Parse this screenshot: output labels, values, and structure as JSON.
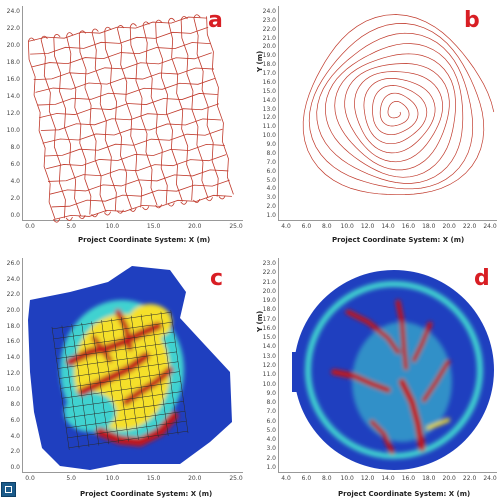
{
  "panels": {
    "a": {
      "label": "a",
      "xlabel": "Project Coordinate System: X (m)",
      "ylabel": "",
      "xticks": [
        "0.0",
        "5.0",
        "10.0",
        "15.0",
        "20.0",
        "25.0"
      ],
      "yticks": [
        "0.0",
        "2.0",
        "4.0",
        "6.0",
        "8.0",
        "10.0",
        "12.0",
        "14.0",
        "16.0",
        "18.0",
        "20.0",
        "22.0",
        "24.0"
      ],
      "style": "track-grid",
      "track_color": "#c0392b"
    },
    "b": {
      "label": "b",
      "xlabel": "Project Coordinate System: X (m)",
      "ylabel": "Y (m)",
      "xticks": [
        "4.0",
        "6.0",
        "8.0",
        "10.0",
        "12.0",
        "14.0",
        "16.0",
        "18.0",
        "20.0",
        "22.0",
        "24.0"
      ],
      "yticks": [
        "1.0",
        "2.0",
        "3.0",
        "4.0",
        "5.0",
        "6.0",
        "7.0",
        "8.0",
        "9.0",
        "10.0",
        "11.0",
        "12.0",
        "13.0",
        "14.0",
        "15.0",
        "16.0",
        "17.0",
        "18.0",
        "19.0",
        "20.0",
        "21.0",
        "22.0",
        "23.0",
        "24.0"
      ],
      "style": "track-spiral",
      "track_color": "#c0392b"
    },
    "c": {
      "label": "c",
      "xlabel": "Project Coordinate System: X (m)",
      "ylabel": "",
      "xticks": [
        "0.0",
        "5.0",
        "10.0",
        "15.0",
        "20.0",
        "25.0"
      ],
      "yticks": [
        "0.0",
        "2.0",
        "4.0",
        "6.0",
        "8.0",
        "10.0",
        "12.0",
        "14.0",
        "16.0",
        "18.0",
        "20.0",
        "22.0",
        "24.0",
        "26.0"
      ],
      "style": "heatmap-grid"
    },
    "d": {
      "label": "d",
      "xlabel": "Project Coordinate System: X (m)",
      "ylabel": "Y (m)",
      "xticks": [
        "4.0",
        "6.0",
        "8.0",
        "10.0",
        "12.0",
        "14.0",
        "16.0",
        "18.0",
        "20.0",
        "22.0",
        "24.0"
      ],
      "yticks": [
        "1.0",
        "2.0",
        "3.0",
        "4.0",
        "5.0",
        "6.0",
        "7.0",
        "8.0",
        "9.0",
        "10.0",
        "11.0",
        "12.0",
        "13.0",
        "14.0",
        "15.0",
        "16.0",
        "17.0",
        "18.0",
        "19.0",
        "20.0",
        "21.0",
        "22.0",
        "23.0"
      ],
      "style": "heatmap-circle"
    }
  },
  "colors": {
    "label_red": "#d81e24",
    "track": "#c0392b",
    "heat_low": "#1f3fbf",
    "heat_mid": "#3fd2d0",
    "heat_warm": "#f5e02a",
    "heat_high": "#c0121a"
  },
  "icons": {
    "corner": "window-icon"
  }
}
